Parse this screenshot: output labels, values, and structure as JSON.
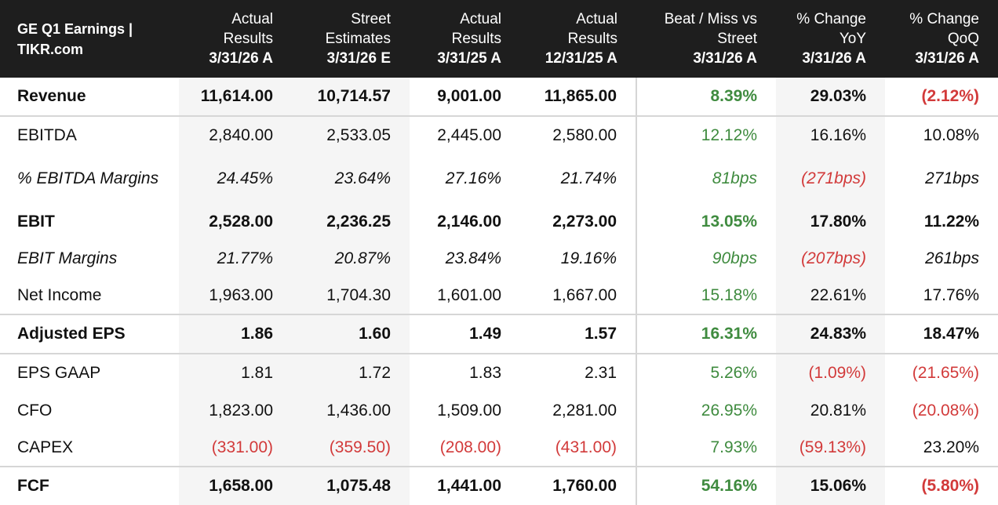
{
  "table": {
    "title_line1": "GE Q1 Earnings |",
    "title_line2": "TIKR.com",
    "columns": [
      {
        "line1": "Actual",
        "line2": "Results",
        "date": "3/31/26 A"
      },
      {
        "line1": "Street",
        "line2": "Estimates",
        "date": "3/31/26 E"
      },
      {
        "line1": "Actual",
        "line2": "Results",
        "date": "3/31/25 A"
      },
      {
        "line1": "Actual",
        "line2": "Results",
        "date": "12/31/25 A"
      },
      {
        "line1": "Beat / Miss vs",
        "line2": "Street",
        "date": "3/31/26 A"
      },
      {
        "line1": "% Change",
        "line2": "YoY",
        "date": "3/31/26 A"
      },
      {
        "line1": "% Change",
        "line2": "QoQ",
        "date": "3/31/26 A"
      }
    ],
    "rows": [
      {
        "label": "Revenue",
        "cells": [
          "11,614.00",
          "10,714.57",
          "9,001.00",
          "11,865.00",
          "8.39%",
          "29.03%",
          "(2.12%)"
        ]
      },
      {
        "label": "EBITDA",
        "cells": [
          "2,840.00",
          "2,533.05",
          "2,445.00",
          "2,580.00",
          "12.12%",
          "16.16%",
          "10.08%"
        ]
      },
      {
        "label": "% EBITDA Margins",
        "cells": [
          "24.45%",
          "23.64%",
          "27.16%",
          "21.74%",
          "81bps",
          "(271bps)",
          "271bps"
        ]
      },
      {
        "label": "EBIT",
        "cells": [
          "2,528.00",
          "2,236.25",
          "2,146.00",
          "2,273.00",
          "13.05%",
          "17.80%",
          "11.22%"
        ]
      },
      {
        "label": "EBIT Margins",
        "cells": [
          "21.77%",
          "20.87%",
          "23.84%",
          "19.16%",
          "90bps",
          "(207bps)",
          "261bps"
        ]
      },
      {
        "label": "Net Income",
        "cells": [
          "1,963.00",
          "1,704.30",
          "1,601.00",
          "1,667.00",
          "15.18%",
          "22.61%",
          "17.76%"
        ]
      },
      {
        "label": "Adjusted EPS",
        "cells": [
          "1.86",
          "1.60",
          "1.49",
          "1.57",
          "16.31%",
          "24.83%",
          "18.47%"
        ]
      },
      {
        "label": "EPS GAAP",
        "cells": [
          "1.81",
          "1.72",
          "1.83",
          "2.31",
          "5.26%",
          "(1.09%)",
          "(21.65%)"
        ]
      },
      {
        "label": "CFO",
        "cells": [
          "1,823.00",
          "1,436.00",
          "1,509.00",
          "2,281.00",
          "26.95%",
          "20.81%",
          "(20.08%)"
        ]
      },
      {
        "label": "CAPEX",
        "cells": [
          "(331.00)",
          "(359.50)",
          "(208.00)",
          "(431.00)",
          "7.93%",
          "(59.13%)",
          "23.20%"
        ]
      },
      {
        "label": "FCF",
        "cells": [
          "1,658.00",
          "1,075.48",
          "1,441.00",
          "1,760.00",
          "54.16%",
          "15.06%",
          "(5.80%)"
        ]
      }
    ]
  },
  "colors": {
    "header_bg": "#1e1e1e",
    "positive": "#3f8b3f",
    "negative": "#d23a3a",
    "shade": "#f5f5f5"
  }
}
